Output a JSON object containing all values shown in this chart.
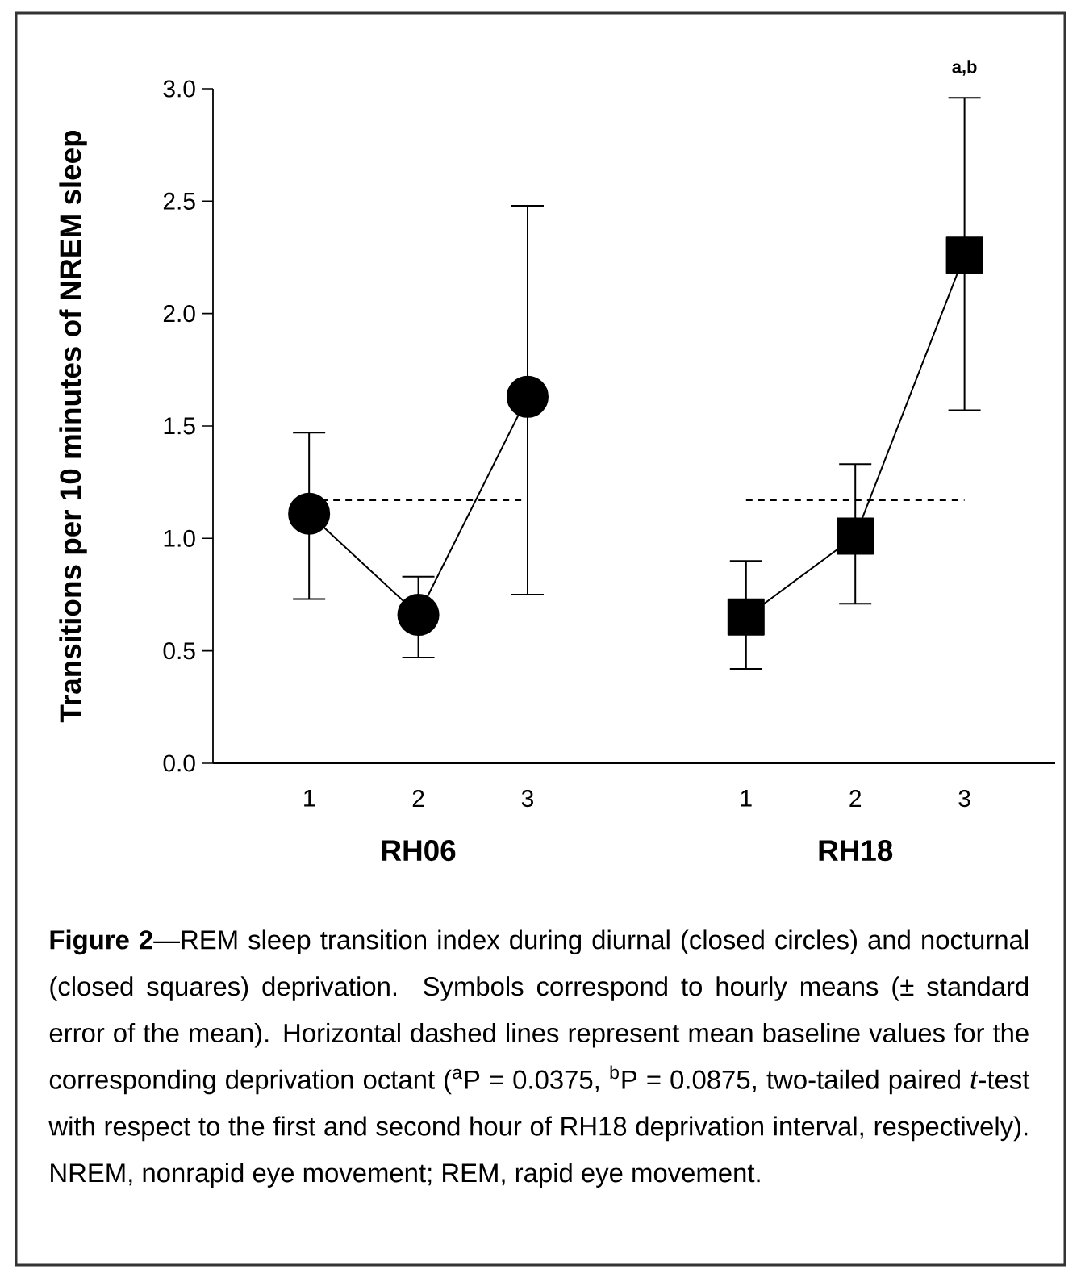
{
  "chart_data": {
    "type": "line",
    "ylabel": "Transitions per 10 minutes of NREM sleep",
    "categories": [
      "1",
      "2",
      "3",
      null,
      "1",
      "2",
      "3"
    ],
    "ylim": [
      0,
      3
    ],
    "yticks": [
      {
        "value": 0,
        "label": "0.0"
      },
      {
        "value": 0.5,
        "label": "0.5"
      },
      {
        "value": 1,
        "label": "1.0"
      },
      {
        "value": 1.5,
        "label": "1.5"
      },
      {
        "value": 2,
        "label": "2.0"
      },
      {
        "value": 2.5,
        "label": "2.5"
      },
      {
        "value": 3,
        "label": "3.0"
      }
    ],
    "series": [
      {
        "color": "#000000",
        "marker": "circle",
        "line_style": "solid",
        "values": [
          1.11,
          0.66,
          1.63,
          null,
          null,
          null,
          null
        ],
        "errors": [
          [
            0.73,
            1.47
          ],
          [
            0.47,
            0.83
          ],
          [
            0.75,
            2.48
          ],
          null,
          null,
          null,
          null
        ]
      },
      {
        "color": "#000000",
        "marker": "square",
        "line_style": "solid",
        "values": [
          null,
          null,
          null,
          null,
          0.65,
          1.01,
          2.26
        ],
        "errors": [
          null,
          null,
          null,
          null,
          [
            0.42,
            0.9
          ],
          [
            0.71,
            1.33
          ],
          [
            1.57,
            2.96
          ]
        ]
      },
      {
        "color": "#000000",
        "marker": "none",
        "line_style": "dashed",
        "values": [
          1.17,
          1.17,
          1.17,
          null,
          null,
          null,
          null
        ]
      },
      {
        "color": "#000000",
        "marker": "none",
        "line_style": "dashed",
        "values": [
          null,
          null,
          null,
          null,
          1.17,
          1.17,
          1.17
        ]
      }
    ],
    "annotations": [
      "RH06",
      "RH18",
      "a,b",
      "**Figure 2**—REM sleep transition index during diurnal (closed circles) and nocturnal (closed squares) deprivation. Symbols correspond to hourly means (± standard error of the mean). Horizontal dashed lines represent mean baseline values for the corresponding deprivation octant ($^{a}$P = 0.0375, $^{b}$P = 0.0875, two-tailed paired *t*-test with respect to the first and second hour of RH18 deprivation interval, respectively). NREM, nonrapid eye movement; REM, rapid eye movement."
    ],
    "grid": false
  }
}
